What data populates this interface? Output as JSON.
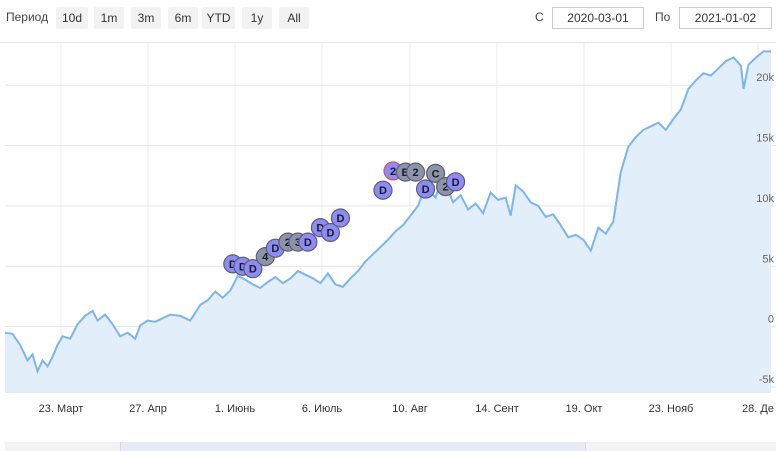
{
  "toolbar": {
    "period_label": "Период",
    "range_buttons": [
      "10d",
      "1m",
      "3m",
      "6m",
      "YTD",
      "1y",
      "All"
    ],
    "from_label": "С",
    "from_value": "2020-03-01",
    "to_label": "По",
    "to_value": "2021-01-02"
  },
  "chart_data": {
    "type": "area",
    "x_tick_labels": [
      "23. Март",
      "27. Апр",
      "1. Июнь",
      "6. Июль",
      "10. Авг",
      "14. Сент",
      "19. Окт",
      "23. Нояб",
      "28. Де"
    ],
    "y_tick_labels": [
      "20k",
      "15k",
      "10k",
      "5k",
      "0",
      "-5k"
    ],
    "ylim": [
      -5500,
      23500
    ],
    "xlim": [
      "2020-03-01",
      "2021-01-01"
    ],
    "grid": true,
    "series": [
      {
        "color": "#7cb5ec",
        "fill": "#e3eefb",
        "points": [
          [
            "2020-03-01",
            -500
          ],
          [
            "2020-03-04",
            -600
          ],
          [
            "2020-03-07",
            -1500
          ],
          [
            "2020-03-10",
            -2800
          ],
          [
            "2020-03-12",
            -2300
          ],
          [
            "2020-03-14",
            -3700
          ],
          [
            "2020-03-16",
            -2800
          ],
          [
            "2020-03-18",
            -3300
          ],
          [
            "2020-03-20",
            -2500
          ],
          [
            "2020-03-22",
            -1500
          ],
          [
            "2020-03-24",
            -800
          ],
          [
            "2020-03-27",
            -1000
          ],
          [
            "2020-03-30",
            200
          ],
          [
            "2020-04-02",
            900
          ],
          [
            "2020-04-05",
            1300
          ],
          [
            "2020-04-07",
            500
          ],
          [
            "2020-04-10",
            1000
          ],
          [
            "2020-04-13",
            200
          ],
          [
            "2020-04-16",
            -800
          ],
          [
            "2020-04-19",
            -500
          ],
          [
            "2020-04-22",
            -1000
          ],
          [
            "2020-04-24",
            100
          ],
          [
            "2020-04-27",
            500
          ],
          [
            "2020-04-30",
            400
          ],
          [
            "2020-05-03",
            700
          ],
          [
            "2020-05-06",
            1000
          ],
          [
            "2020-05-10",
            900
          ],
          [
            "2020-05-14",
            500
          ],
          [
            "2020-05-18",
            1800
          ],
          [
            "2020-05-21",
            2200
          ],
          [
            "2020-05-24",
            2900
          ],
          [
            "2020-05-27",
            2400
          ],
          [
            "2020-05-30",
            3000
          ],
          [
            "2020-06-02",
            4200
          ],
          [
            "2020-06-05",
            3900
          ],
          [
            "2020-06-08",
            3500
          ],
          [
            "2020-06-11",
            3200
          ],
          [
            "2020-06-14",
            3700
          ],
          [
            "2020-06-17",
            4100
          ],
          [
            "2020-06-20",
            3600
          ],
          [
            "2020-06-23",
            4000
          ],
          [
            "2020-06-26",
            4600
          ],
          [
            "2020-06-29",
            4300
          ],
          [
            "2020-07-02",
            4000
          ],
          [
            "2020-07-05",
            3600
          ],
          [
            "2020-07-08",
            4400
          ],
          [
            "2020-07-11",
            3500
          ],
          [
            "2020-07-14",
            3300
          ],
          [
            "2020-07-17",
            4000
          ],
          [
            "2020-07-20",
            4600
          ],
          [
            "2020-07-23",
            5400
          ],
          [
            "2020-07-26",
            6000
          ],
          [
            "2020-07-29",
            6600
          ],
          [
            "2020-08-01",
            7200
          ],
          [
            "2020-08-04",
            7900
          ],
          [
            "2020-08-07",
            8400
          ],
          [
            "2020-08-10",
            9200
          ],
          [
            "2020-08-13",
            10000
          ],
          [
            "2020-08-15",
            11100
          ],
          [
            "2020-08-17",
            11300
          ],
          [
            "2020-08-20",
            10700
          ],
          [
            "2020-08-22",
            12000
          ],
          [
            "2020-08-24",
            11800
          ],
          [
            "2020-08-27",
            10300
          ],
          [
            "2020-08-30",
            10900
          ],
          [
            "2020-09-02",
            9700
          ],
          [
            "2020-09-05",
            10200
          ],
          [
            "2020-09-08",
            9400
          ],
          [
            "2020-09-11",
            11100
          ],
          [
            "2020-09-14",
            10500
          ],
          [
            "2020-09-17",
            10700
          ],
          [
            "2020-09-19",
            9200
          ],
          [
            "2020-09-21",
            11700
          ],
          [
            "2020-09-24",
            11200
          ],
          [
            "2020-09-27",
            10300
          ],
          [
            "2020-09-30",
            10000
          ],
          [
            "2020-10-03",
            9100
          ],
          [
            "2020-10-06",
            9300
          ],
          [
            "2020-10-09",
            8400
          ],
          [
            "2020-10-12",
            7400
          ],
          [
            "2020-10-15",
            7600
          ],
          [
            "2020-10-18",
            7200
          ],
          [
            "2020-10-21",
            6300
          ],
          [
            "2020-10-24",
            8200
          ],
          [
            "2020-10-27",
            7700
          ],
          [
            "2020-10-30",
            8700
          ],
          [
            "2020-11-02",
            12800
          ],
          [
            "2020-11-05",
            14900
          ],
          [
            "2020-11-08",
            15700
          ],
          [
            "2020-11-11",
            16300
          ],
          [
            "2020-11-14",
            16600
          ],
          [
            "2020-11-17",
            16900
          ],
          [
            "2020-11-20",
            16300
          ],
          [
            "2020-11-23",
            17200
          ],
          [
            "2020-11-26",
            18000
          ],
          [
            "2020-11-29",
            19700
          ],
          [
            "2020-12-02",
            20400
          ],
          [
            "2020-12-05",
            21000
          ],
          [
            "2020-12-08",
            20800
          ],
          [
            "2020-12-11",
            21400
          ],
          [
            "2020-12-14",
            22000
          ],
          [
            "2020-12-17",
            22300
          ],
          [
            "2020-12-20",
            21600
          ],
          [
            "2020-12-21",
            19700
          ],
          [
            "2020-12-23",
            21700
          ],
          [
            "2020-12-26",
            22300
          ],
          [
            "2020-12-29",
            22800
          ],
          [
            "2021-01-01",
            22800
          ]
        ]
      }
    ],
    "flags": [
      {
        "text": "D",
        "x": "2020-05-31",
        "y": 5200
      },
      {
        "text": "D",
        "x": "2020-06-04",
        "y": 5000
      },
      {
        "text": "D",
        "x": "2020-06-08",
        "y": 4800
      },
      {
        "text": "4",
        "x": "2020-06-13",
        "y": 5800
      },
      {
        "text": "D",
        "x": "2020-06-17",
        "y": 6500
      },
      {
        "text": "2",
        "x": "2020-06-22",
        "y": 7000
      },
      {
        "text": "3",
        "x": "2020-06-26",
        "y": 7000
      },
      {
        "text": "D",
        "x": "2020-06-30",
        "y": 7000
      },
      {
        "text": "D",
        "x": "2020-07-05",
        "y": 8200
      },
      {
        "text": "D",
        "x": "2020-07-09",
        "y": 7800
      },
      {
        "text": "D",
        "x": "2020-07-13",
        "y": 9000
      },
      {
        "text": "D",
        "x": "2020-07-30",
        "y": 11300
      },
      {
        "text": "2",
        "x": "2020-08-03",
        "y": 12900
      },
      {
        "text": "B",
        "x": "2020-08-08",
        "y": 12800
      },
      {
        "text": "2",
        "x": "2020-08-12",
        "y": 12800
      },
      {
        "text": "D",
        "x": "2020-08-16",
        "y": 11400
      },
      {
        "text": "C",
        "x": "2020-08-20",
        "y": 12700
      },
      {
        "text": "2",
        "x": "2020-08-24",
        "y": 11600
      },
      {
        "text": "D",
        "x": "2020-08-28",
        "y": 12000
      }
    ]
  }
}
